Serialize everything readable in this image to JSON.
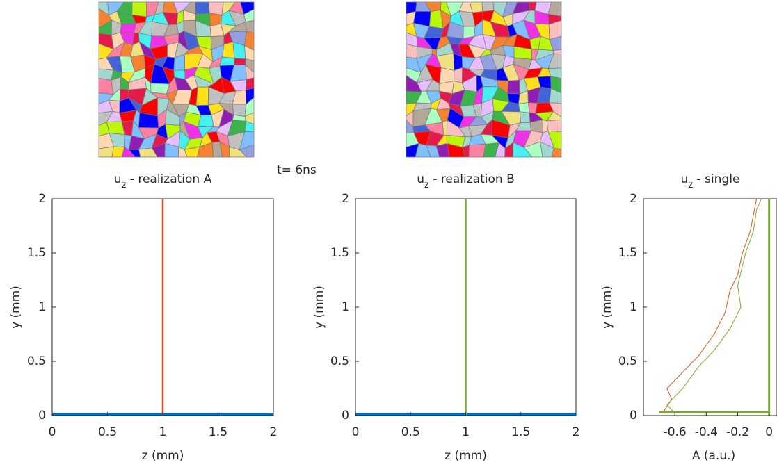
{
  "chart_data": [
    {
      "type": "line",
      "title": {
        "base": "u",
        "sub": "z",
        "text": " - realization A"
      },
      "annotation": "t=  6ns",
      "xlabel": "z (mm)",
      "ylabel": "y (mm)",
      "xlim": [
        0,
        2
      ],
      "ylim": [
        0,
        2
      ],
      "xticks": [
        0,
        0.5,
        1,
        1.5,
        2
      ],
      "yticks": [
        0,
        0.5,
        1,
        1.5,
        2
      ],
      "series": [
        {
          "color": "#0072bd",
          "width": 5,
          "x": [
            0,
            2
          ],
          "y": [
            0.01,
            0.01
          ]
        },
        {
          "color": "#d95319",
          "width": 2.5,
          "x": [
            1,
            1
          ],
          "y": [
            0,
            2
          ]
        }
      ]
    },
    {
      "type": "line",
      "title": {
        "base": "u",
        "sub": "z",
        "text": " - realization B"
      },
      "xlabel": "z (mm)",
      "ylabel": "y (mm)",
      "xlim": [
        0,
        2
      ],
      "ylim": [
        0,
        2
      ],
      "xticks": [
        0,
        0.5,
        1,
        1.5,
        2
      ],
      "yticks": [
        0,
        0.5,
        1,
        1.5,
        2
      ],
      "series": [
        {
          "color": "#0072bd",
          "width": 5,
          "x": [
            0,
            2
          ],
          "y": [
            0.01,
            0.01
          ]
        },
        {
          "color": "#77ac30",
          "width": 2.5,
          "x": [
            1,
            1
          ],
          "y": [
            0,
            2
          ]
        }
      ]
    },
    {
      "type": "line",
      "title": {
        "base": "u",
        "sub": "z",
        "text": " - single"
      },
      "xlabel": "A (a.u.)",
      "ylabel": "y (mm)",
      "xlim": [
        -0.8,
        0.05
      ],
      "ylim": [
        0,
        2
      ],
      "xticks": [
        -0.6,
        -0.4,
        -0.2,
        0
      ],
      "yticks": [
        0,
        0.5,
        1,
        1.5,
        2
      ],
      "series": [
        {
          "color": "#d95319",
          "width": 1,
          "x": [
            -0.68,
            -0.62,
            -0.65,
            -0.55,
            -0.45,
            -0.35,
            -0.28,
            -0.25,
            -0.2,
            -0.17,
            -0.12,
            -0.1,
            -0.08
          ],
          "y": [
            0.02,
            0.15,
            0.25,
            0.4,
            0.55,
            0.75,
            0.95,
            1.15,
            1.3,
            1.5,
            1.7,
            1.85,
            2.0
          ]
        },
        {
          "color": "#77ac30",
          "width": 1,
          "x": [
            -0.6,
            -0.65,
            -0.55,
            -0.45,
            -0.35,
            -0.25,
            -0.18,
            -0.2,
            -0.15,
            -0.1,
            -0.08,
            -0.05
          ],
          "y": [
            0.02,
            0.1,
            0.25,
            0.45,
            0.6,
            0.8,
            1.0,
            1.2,
            1.5,
            1.7,
            1.9,
            2.0
          ]
        },
        {
          "color": "#77ac30",
          "width": 3,
          "x": [
            -0.7,
            0
          ],
          "y": [
            0.03,
            0.03
          ]
        },
        {
          "color": "#77ac30",
          "width": 3,
          "x": [
            0,
            0
          ],
          "y": [
            0,
            2
          ]
        }
      ]
    }
  ]
}
